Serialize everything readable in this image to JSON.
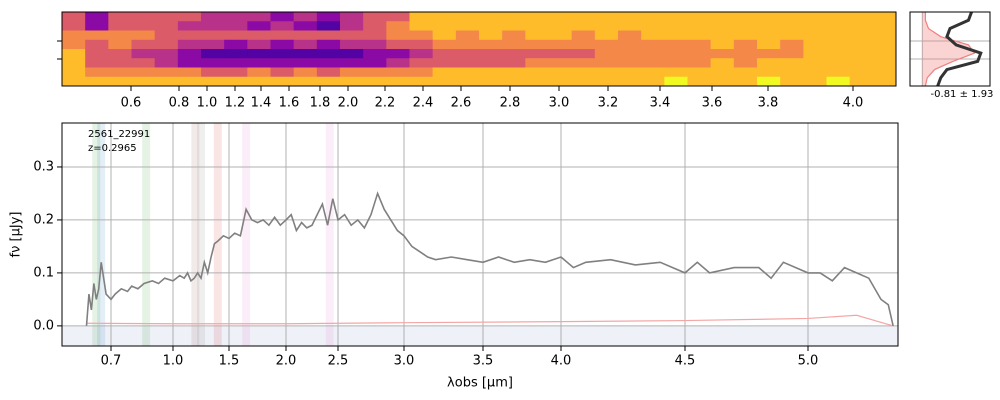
{
  "chart_data": [
    {
      "type": "heatmap",
      "colormap": "plasma",
      "xlim": [
        0.31,
        4.1
      ],
      "xticks": [
        0.6,
        0.8,
        {
          "value": 1,
          "label": "1.0"
        },
        1.2,
        1.4,
        1.6,
        1.8,
        {
          "value": 2,
          "label": "2.0"
        },
        2.2,
        2.4,
        2.6,
        2.8,
        {
          "value": 3,
          "label": "3.0"
        },
        3.2,
        3.4,
        3.6,
        3.8,
        {
          "value": 4,
          "label": "4.0"
        }
      ],
      "values": [
        [
          0.5,
          0.3,
          0.55,
          0.6,
          0.55,
          0.5,
          0.45,
          0.4,
          0.45,
          0.35,
          0.4,
          0.3,
          0.45,
          0.5,
          0.6,
          0.8,
          0.85,
          0.8,
          0.85,
          0.8,
          0.85,
          0.9,
          0.8,
          0.85,
          0.8,
          0.85,
          0.9,
          0.85,
          0.8,
          0.85,
          0.9,
          0.8,
          0.85,
          0.9,
          0.8,
          0.85
        ],
        [
          0.6,
          0.35,
          0.6,
          0.55,
          0.5,
          0.45,
          0.4,
          0.45,
          0.35,
          0.4,
          0.3,
          0.2,
          0.4,
          0.55,
          0.7,
          0.8,
          0.85,
          0.9,
          0.8,
          0.85,
          0.8,
          0.9,
          0.85,
          0.8,
          0.85,
          0.9,
          0.8,
          0.85,
          0.9,
          0.8,
          0.85,
          0.8,
          0.9,
          0.85,
          0.8,
          0.85
        ],
        [
          0.7,
          0.65,
          0.7,
          0.65,
          0.6,
          0.55,
          0.55,
          0.5,
          0.55,
          0.5,
          0.55,
          0.5,
          0.55,
          0.6,
          0.7,
          0.75,
          0.8,
          0.75,
          0.8,
          0.75,
          0.8,
          0.8,
          0.75,
          0.8,
          0.75,
          0.8,
          0.85,
          0.8,
          0.8,
          0.85,
          0.8,
          0.85,
          0.8,
          0.9,
          0.85,
          0.85
        ],
        [
          0.75,
          0.6,
          0.65,
          0.6,
          0.55,
          0.45,
          0.4,
          0.35,
          0.4,
          0.35,
          0.4,
          0.35,
          0.4,
          0.45,
          0.55,
          0.6,
          0.65,
          0.65,
          0.7,
          0.65,
          0.7,
          0.7,
          0.65,
          0.7,
          0.7,
          0.75,
          0.7,
          0.75,
          0.8,
          0.75,
          0.8,
          0.75,
          0.8,
          0.85,
          0.8,
          0.85
        ],
        [
          0.8,
          0.55,
          0.5,
          0.45,
          0.4,
          0.25,
          0.2,
          0.15,
          0.2,
          0.15,
          0.2,
          0.15,
          0.2,
          0.25,
          0.35,
          0.45,
          0.5,
          0.5,
          0.55,
          0.55,
          0.6,
          0.6,
          0.6,
          0.65,
          0.65,
          0.7,
          0.7,
          0.7,
          0.75,
          0.7,
          0.75,
          0.75,
          0.8,
          0.8,
          0.8,
          0.85
        ],
        [
          0.8,
          0.6,
          0.55,
          0.5,
          0.45,
          0.35,
          0.3,
          0.25,
          0.3,
          0.25,
          0.3,
          0.25,
          0.3,
          0.35,
          0.45,
          0.5,
          0.55,
          0.55,
          0.6,
          0.6,
          0.65,
          0.65,
          0.65,
          0.7,
          0.7,
          0.75,
          0.7,
          0.75,
          0.8,
          0.75,
          0.8,
          0.8,
          0.8,
          0.85,
          0.85,
          0.85
        ],
        [
          0.85,
          0.75,
          0.75,
          0.7,
          0.7,
          0.65,
          0.6,
          0.6,
          0.65,
          0.6,
          0.65,
          0.6,
          0.65,
          0.7,
          0.75,
          0.75,
          0.8,
          0.8,
          0.8,
          0.85,
          0.8,
          0.85,
          0.8,
          0.85,
          0.8,
          0.85,
          0.9,
          0.85,
          0.85,
          0.9,
          0.85,
          0.9,
          0.85,
          0.9,
          0.85,
          0.85
        ],
        [
          0.85,
          0.8,
          0.85,
          0.8,
          0.85,
          0.8,
          0.85,
          0.8,
          0.85,
          0.9,
          0.85,
          0.8,
          0.85,
          0.9,
          0.85,
          0.8,
          0.85,
          0.9,
          0.85,
          0.8,
          0.85,
          0.9,
          0.85,
          0.9,
          0.85,
          0.9,
          0.95,
          0.9,
          0.85,
          0.9,
          0.95,
          0.9,
          0.85,
          0.95,
          0.9,
          0.85
        ]
      ]
    },
    {
      "type": "profile",
      "annotation": "-0.81 ± 1.93",
      "xlim": [
        -0.2,
        1.1
      ],
      "series": [
        {
          "name": "model",
          "color": "#f08080",
          "values": [
            0.05,
            0.05,
            0.1,
            0.3,
            0.75,
            0.85,
            0.5,
            0.2,
            0.08,
            0.05
          ]
        },
        {
          "name": "data",
          "color": "#333333",
          "values": [
            0.8,
            0.75,
            0.45,
            0.4,
            0.55,
            0.95,
            0.9,
            0.4,
            0.3,
            0.25
          ]
        }
      ]
    },
    {
      "type": "line",
      "xlabel": "λobs [μm]",
      "ylabel": "fν [μJy]",
      "annotations": [
        "2561_22991",
        "z=0.2965"
      ],
      "xlim": [
        0.5,
        5.37
      ],
      "ylim": [
        -0.038,
        0.383
      ],
      "xticks": [
        0.7,
        {
          "value": 1,
          "label": "1.0"
        },
        1.5,
        {
          "value": 2,
          "label": "2.0"
        },
        2.5,
        {
          "value": 3,
          "label": "3.0"
        },
        3.5,
        {
          "value": 4,
          "label": "4.0"
        },
        4.5,
        {
          "value": 5,
          "label": "5.0"
        }
      ],
      "yticks": [
        {
          "value": 0,
          "label": "0.0"
        },
        0.1,
        0.2,
        0.3
      ],
      "grid": true,
      "line_markers": [
        {
          "x": 0.64,
          "color": "#2ca02c"
        },
        {
          "x": 0.66,
          "color": "#1f77b4"
        },
        {
          "x": 0.87,
          "color": "#2ca02c"
        },
        {
          "x": 1.2,
          "color": "#8c564b"
        },
        {
          "x": 1.25,
          "color": "#7f7f7f"
        },
        {
          "x": 1.4,
          "color": "#d62728"
        },
        {
          "x": 1.65,
          "color": "#e377c2"
        },
        {
          "x": 2.42,
          "color": "#e377c2"
        }
      ],
      "series": [
        {
          "name": "flux",
          "color": "#808080",
          "x": [
            0.6,
            0.61,
            0.62,
            0.63,
            0.64,
            0.65,
            0.66,
            0.68,
            0.7,
            0.72,
            0.75,
            0.78,
            0.8,
            0.83,
            0.86,
            0.9,
            0.93,
            0.96,
            1.0,
            1.03,
            1.06,
            1.1,
            1.13,
            1.16,
            1.19,
            1.22,
            1.25,
            1.28,
            1.31,
            1.34,
            1.37,
            1.4,
            1.45,
            1.5,
            1.55,
            1.6,
            1.65,
            1.7,
            1.75,
            1.8,
            1.85,
            1.9,
            1.95,
            2.0,
            2.05,
            2.1,
            2.15,
            2.2,
            2.25,
            2.3,
            2.35,
            2.4,
            2.45,
            2.5,
            2.55,
            2.6,
            2.65,
            2.7,
            2.75,
            2.8,
            2.85,
            2.9,
            2.95,
            3.0,
            3.05,
            3.1,
            3.15,
            3.2,
            3.3,
            3.4,
            3.5,
            3.6,
            3.7,
            3.8,
            3.9,
            4.0,
            4.05,
            4.1,
            4.2,
            4.3,
            4.4,
            4.5,
            4.55,
            4.6,
            4.7,
            4.8,
            4.85,
            4.9,
            5.0,
            5.05,
            5.1,
            5.15,
            5.2,
            5.25,
            5.3,
            5.33,
            5.35
          ],
          "values": [
            0.0,
            0.06,
            0.03,
            0.08,
            0.05,
            0.07,
            0.12,
            0.06,
            0.05,
            0.06,
            0.07,
            0.065,
            0.075,
            0.07,
            0.08,
            0.085,
            0.08,
            0.09,
            0.085,
            0.09,
            0.095,
            0.09,
            0.1,
            0.085,
            0.09,
            0.1,
            0.09,
            0.12,
            0.1,
            0.13,
            0.155,
            0.16,
            0.17,
            0.165,
            0.175,
            0.17,
            0.22,
            0.2,
            0.195,
            0.2,
            0.19,
            0.205,
            0.19,
            0.2,
            0.21,
            0.18,
            0.195,
            0.185,
            0.19,
            0.21,
            0.23,
            0.19,
            0.24,
            0.2,
            0.21,
            0.19,
            0.2,
            0.185,
            0.21,
            0.25,
            0.22,
            0.2,
            0.18,
            0.17,
            0.15,
            0.14,
            0.13,
            0.125,
            0.13,
            0.125,
            0.12,
            0.13,
            0.12,
            0.125,
            0.12,
            0.13,
            0.11,
            0.12,
            0.125,
            0.115,
            0.12,
            0.1,
            0.12,
            0.1,
            0.11,
            0.11,
            0.09,
            0.12,
            0.1,
            0.1,
            0.085,
            0.11,
            0.1,
            0.09,
            0.05,
            0.04,
            0.0
          ]
        },
        {
          "name": "error",
          "color": "#f4a6a6",
          "x": [
            0.6,
            1.0,
            2.0,
            3.0,
            4.0,
            4.5,
            5.0,
            5.2,
            5.35
          ],
          "values": [
            0.005,
            0.004,
            0.004,
            0.006,
            0.008,
            0.01,
            0.014,
            0.02,
            0.0
          ]
        }
      ]
    }
  ]
}
